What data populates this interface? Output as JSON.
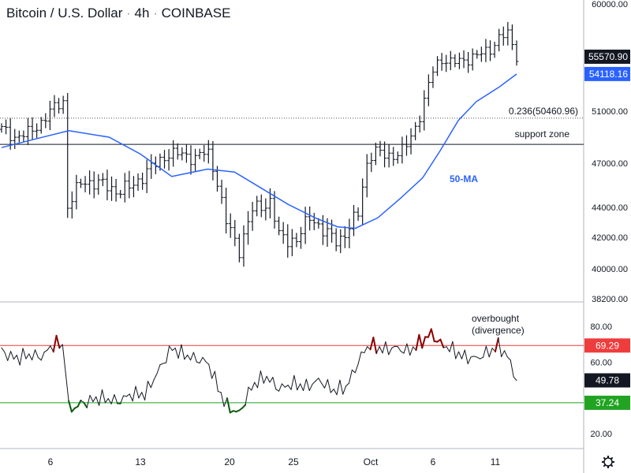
{
  "header": {
    "pair": "Bitcoin / U.S. Dollar",
    "interval": "4h",
    "exchange": "COINBASE",
    "separator": "·"
  },
  "chart_data": [
    {
      "type": "bar",
      "subtype": "ohlc",
      "ylim": [
        38200,
        60000
      ],
      "price_axis_labels": [
        "60000.00",
        "51000.00",
        "47000.00",
        "44000.00",
        "42000.00",
        "40000.00",
        "38200.00"
      ],
      "date_labels": [
        "6",
        "13",
        "20",
        "25",
        "Oct",
        "6",
        "11"
      ],
      "current_price": {
        "value": 55570.9,
        "label": "55570.90",
        "color": "#131722"
      },
      "ma": {
        "name": "50-MA",
        "value": 54118.16,
        "label": "54118.16",
        "color": "#2962ff"
      },
      "fib_level": {
        "text": "0.236(50460.96)",
        "value": 50460.96
      },
      "support": {
        "text": "support zone",
        "value": 48450
      },
      "price_path": [
        {
          "t": 0,
          "v": 49600
        },
        {
          "t": 3,
          "v": 49000
        },
        {
          "t": 6,
          "v": 49300
        },
        {
          "t": 9,
          "v": 50200
        },
        {
          "t": 12,
          "v": 51400
        },
        {
          "t": 14,
          "v": 51900
        },
        {
          "t": 14.6,
          "v": 44000
        },
        {
          "t": 18,
          "v": 45800
        },
        {
          "t": 22,
          "v": 45600
        },
        {
          "t": 26,
          "v": 45100
        },
        {
          "t": 29,
          "v": 45400
        },
        {
          "t": 32,
          "v": 46300
        },
        {
          "t": 35,
          "v": 47100
        },
        {
          "t": 37,
          "v": 47700
        },
        {
          "t": 40,
          "v": 47700
        },
        {
          "t": 43,
          "v": 47400
        },
        {
          "t": 46,
          "v": 47900
        },
        {
          "t": 48,
          "v": 46000
        },
        {
          "t": 50,
          "v": 43100
        },
        {
          "t": 53,
          "v": 41200
        },
        {
          "t": 56,
          "v": 43800
        },
        {
          "t": 60,
          "v": 44400
        },
        {
          "t": 62,
          "v": 42000
        },
        {
          "t": 66,
          "v": 41800
        },
        {
          "t": 69,
          "v": 43500
        },
        {
          "t": 72,
          "v": 42300
        },
        {
          "t": 75,
          "v": 41800
        },
        {
          "t": 77,
          "v": 42300
        },
        {
          "t": 80,
          "v": 43800
        },
        {
          "t": 81,
          "v": 46600
        },
        {
          "t": 83,
          "v": 47900
        },
        {
          "t": 86,
          "v": 47600
        },
        {
          "t": 89,
          "v": 47700
        },
        {
          "t": 91,
          "v": 48700
        },
        {
          "t": 94,
          "v": 51200
        },
        {
          "t": 96,
          "v": 54200
        },
        {
          "t": 98,
          "v": 55500
        },
        {
          "t": 100,
          "v": 55000
        },
        {
          "t": 103,
          "v": 55300
        },
        {
          "t": 106,
          "v": 55600
        },
        {
          "t": 109,
          "v": 56200
        },
        {
          "t": 111,
          "v": 57100
        },
        {
          "t": 113,
          "v": 57500
        },
        {
          "t": 115,
          "v": 55700
        }
      ],
      "ma_path": [
        {
          "t": 0,
          "v": 48200
        },
        {
          "t": 8,
          "v": 48900
        },
        {
          "t": 15,
          "v": 49500
        },
        {
          "t": 24,
          "v": 49000
        },
        {
          "t": 31,
          "v": 47700
        },
        {
          "t": 38,
          "v": 46100
        },
        {
          "t": 46,
          "v": 46600
        },
        {
          "t": 52,
          "v": 46400
        },
        {
          "t": 58,
          "v": 45300
        },
        {
          "t": 64,
          "v": 44200
        },
        {
          "t": 70,
          "v": 43300
        },
        {
          "t": 75,
          "v": 42700
        },
        {
          "t": 79,
          "v": 42600
        },
        {
          "t": 84,
          "v": 43300
        },
        {
          "t": 89,
          "v": 44600
        },
        {
          "t": 94,
          "v": 46000
        },
        {
          "t": 98,
          "v": 48000
        },
        {
          "t": 102,
          "v": 50300
        },
        {
          "t": 106,
          "v": 51800
        },
        {
          "t": 111,
          "v": 53000
        },
        {
          "t": 115,
          "v": 54118
        }
      ]
    },
    {
      "type": "line",
      "name": "RSI",
      "ylim": [
        13,
        93
      ],
      "axis_labels": [
        "80.00",
        "60.00",
        "20.00"
      ],
      "overbought": {
        "value": 69.29,
        "label": "69.29",
        "color": "#ef3c3c"
      },
      "oversold": {
        "value": 37.24,
        "label": "37.24",
        "color": "#22a322"
      },
      "current": {
        "value": 49.78,
        "label": "49.78"
      },
      "annotation": {
        "lines": [
          "overbought",
          "(divergence)"
        ]
      },
      "path": [
        {
          "t": 0,
          "v": 66
        },
        {
          "t": 3,
          "v": 62
        },
        {
          "t": 6,
          "v": 64
        },
        {
          "t": 9,
          "v": 63
        },
        {
          "t": 12,
          "v": 71
        },
        {
          "t": 14,
          "v": 68
        },
        {
          "t": 15,
          "v": 33
        },
        {
          "t": 18,
          "v": 37
        },
        {
          "t": 22,
          "v": 40
        },
        {
          "t": 26,
          "v": 38
        },
        {
          "t": 29,
          "v": 42
        },
        {
          "t": 32,
          "v": 42
        },
        {
          "t": 35,
          "v": 55
        },
        {
          "t": 38,
          "v": 68
        },
        {
          "t": 40,
          "v": 65
        },
        {
          "t": 43,
          "v": 62
        },
        {
          "t": 46,
          "v": 60
        },
        {
          "t": 48,
          "v": 48
        },
        {
          "t": 50,
          "v": 36
        },
        {
          "t": 53,
          "v": 31
        },
        {
          "t": 56,
          "v": 47
        },
        {
          "t": 59,
          "v": 52
        },
        {
          "t": 62,
          "v": 45
        },
        {
          "t": 65,
          "v": 48
        },
        {
          "t": 68,
          "v": 46
        },
        {
          "t": 71,
          "v": 50
        },
        {
          "t": 74,
          "v": 44
        },
        {
          "t": 77,
          "v": 46
        },
        {
          "t": 80,
          "v": 62
        },
        {
          "t": 82,
          "v": 70
        },
        {
          "t": 85,
          "v": 67
        },
        {
          "t": 88,
          "v": 68
        },
        {
          "t": 91,
          "v": 66
        },
        {
          "t": 94,
          "v": 72
        },
        {
          "t": 96,
          "v": 76
        },
        {
          "t": 98,
          "v": 70
        },
        {
          "t": 100,
          "v": 68
        },
        {
          "t": 103,
          "v": 63
        },
        {
          "t": 106,
          "v": 62
        },
        {
          "t": 109,
          "v": 66
        },
        {
          "t": 111,
          "v": 69
        },
        {
          "t": 113,
          "v": 63
        },
        {
          "t": 115,
          "v": 50
        }
      ]
    }
  ]
}
